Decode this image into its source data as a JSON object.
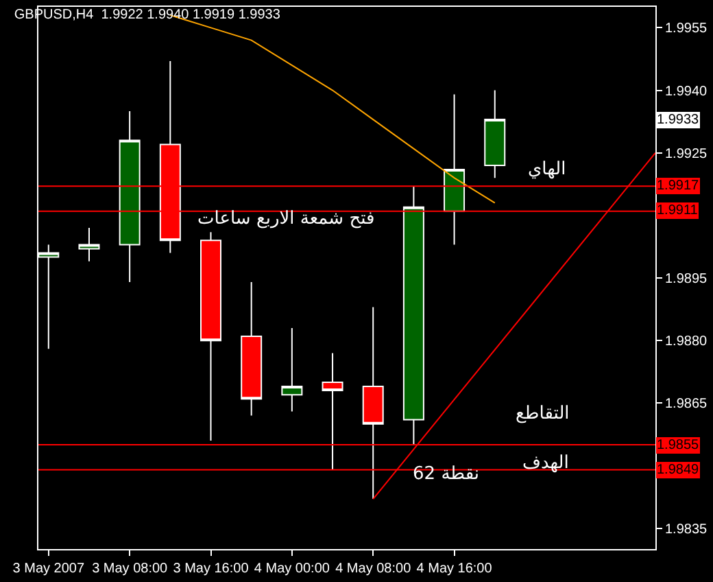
{
  "chart_data": {
    "type": "candlestick",
    "title": "GBPUSD,H4  1.9922 1.9940 1.9919 1.9933",
    "x": [
      "2007-05-03T00:00",
      "2007-05-03T04:00",
      "2007-05-03T08:00",
      "2007-05-03T12:00",
      "2007-05-03T16:00",
      "2007-05-03T20:00",
      "2007-05-04T00:00",
      "2007-05-04T04:00",
      "2007-05-04T08:00",
      "2007-05-04T12:00",
      "2007-05-04T16:00",
      "2007-05-04T20:00"
    ],
    "ohlc": [
      [
        1.99,
        1.9903,
        1.9878,
        1.9901
      ],
      [
        1.9902,
        1.9907,
        1.9899,
        1.9903
      ],
      [
        1.9903,
        1.9935,
        1.9894,
        1.9928
      ],
      [
        1.9927,
        1.9947,
        1.9901,
        1.9904
      ],
      [
        1.9904,
        1.9906,
        1.9856,
        1.988
      ],
      [
        1.9881,
        1.9894,
        1.9862,
        1.9866
      ],
      [
        1.9867,
        1.9883,
        1.9863,
        1.9869
      ],
      [
        1.987,
        1.9877,
        1.9849,
        1.9868
      ],
      [
        1.9869,
        1.9888,
        1.9842,
        1.986
      ],
      [
        1.9861,
        1.9917,
        1.9855,
        1.9912
      ],
      [
        1.9911,
        1.9939,
        1.9903,
        1.9921
      ],
      [
        1.9922,
        1.994,
        1.9919,
        1.9933
      ]
    ],
    "colors": [
      "#006400",
      "#006400",
      "#006400",
      "#ff0000",
      "#ff0000",
      "#ff0000",
      "#006400",
      "#ff0000",
      "#ff0000",
      "#006400",
      "#006400",
      "#006400"
    ],
    "series": [
      {
        "type": "line",
        "color": "#ffa500",
        "x": [
          "2007-05-03T12:00",
          "2007-05-03T16:00",
          "2007-05-03T20:00",
          "2007-05-04T00:00",
          "2007-05-04T04:00",
          "2007-05-04T08:00",
          "2007-05-04T12:00",
          "2007-05-04T16:00",
          "2007-05-04T20:00"
        ],
        "values": [
          1.9958,
          1.9955,
          1.9952,
          1.9946,
          1.994,
          1.9933,
          1.9926,
          1.9919,
          1.9913
        ]
      },
      {
        "type": "line",
        "color": "#ff0000",
        "x": [
          "2007-05-04T08:00",
          "2007-05-05T11:50"
        ],
        "values": [
          1.9842,
          1.9925
        ]
      }
    ],
    "ref_lines": [
      {
        "axis": "y",
        "value": 1.9917,
        "label": "1.9917",
        "color": "#ff0000"
      },
      {
        "axis": "y",
        "value": 1.9911,
        "label": "1.9911",
        "color": "#ff0000"
      },
      {
        "axis": "y",
        "value": 1.9855,
        "label": "1.9855",
        "color": "#ff0000"
      },
      {
        "axis": "y",
        "value": 1.9849,
        "label": "1.9849",
        "color": "#ff0000"
      }
    ],
    "annotations": [
      {
        "text": "1.9933",
        "y": 1.9933
      },
      "الهاي",
      "فتح شمعة الاربع ساعات",
      "التقاطع",
      "الهدف",
      "62 نقطة"
    ],
    "xlim": [
      "2007-05-02T23:00",
      "2007-05-05T11:50"
    ],
    "xticks": [
      {
        "value": "2007-05-03T00:00",
        "label": "3 May 2007"
      },
      {
        "value": "2007-05-03T08:00",
        "label": "3 May 08:00"
      },
      {
        "value": "2007-05-03T16:00",
        "label": "3 May 16:00"
      },
      {
        "value": "2007-05-04T00:00",
        "label": "4 May 00:00"
      },
      {
        "value": "2007-05-04T08:00",
        "label": "4 May 08:00"
      },
      {
        "value": "2007-05-04T16:00",
        "label": "4 May 16:00"
      }
    ],
    "ylim": [
      1.983,
      1.996
    ],
    "yticks": [
      1.9955,
      {
        "value": 1.994,
        "label": "1.9940"
      },
      1.9925,
      1.9895,
      {
        "value": 1.988,
        "label": "1.9880"
      },
      1.9865,
      1.9835
    ],
    "grid": false
  }
}
